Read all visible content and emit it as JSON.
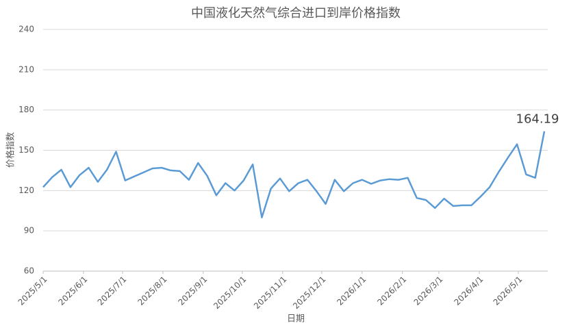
{
  "chart_data": {
    "type": "line",
    "title": "中国液化天然气综合进口到岸价格指数",
    "x_label": "日期",
    "y_label": "价格指数",
    "x": [
      "2025/5/1",
      "2025/5/8",
      "2025/5/15",
      "2025/5/22",
      "2025/5/29",
      "2025/6/5",
      "2025/6/12",
      "2025/6/19",
      "2025/6/26",
      "2025/7/3",
      "2025/7/10",
      "2025/7/17",
      "2025/7/24",
      "2025/7/31",
      "2025/8/7",
      "2025/8/14",
      "2025/8/21",
      "2025/8/28",
      "2025/9/4",
      "2025/9/11",
      "2025/9/18",
      "2025/9/25",
      "2025/10/2",
      "2025/10/9",
      "2025/10/16",
      "2025/10/23",
      "2025/10/30",
      "2025/11/6",
      "2025/11/13",
      "2025/11/20",
      "2025/11/27",
      "2025/12/4",
      "2025/12/11",
      "2025/12/18",
      "2025/12/25",
      "2026/1/1",
      "2026/1/8",
      "2026/1/15",
      "2026/1/22",
      "2026/1/29",
      "2026/2/5",
      "2026/2/12",
      "2026/2/19",
      "2026/2/26",
      "2026/3/5",
      "2026/3/12",
      "2026/3/19",
      "2026/3/26",
      "2026/4/2",
      "2026/4/9",
      "2026/4/16",
      "2026/4/23",
      "2026/4/30",
      "2026/5/7",
      "2026/5/14",
      "2026/5/21"
    ],
    "series": [
      {
        "name": "价格指数",
        "color": "#5b9bd5",
        "values": [
          122.5,
          130,
          135.5,
          122.5,
          131.5,
          137,
          126.5,
          135.5,
          149,
          127.5,
          130.5,
          133.5,
          136.5,
          137,
          135,
          134.5,
          128,
          140.5,
          131,
          116.5,
          125.5,
          120,
          127.5,
          139.5,
          100,
          121.5,
          129,
          119.5,
          125.5,
          128,
          119.5,
          110,
          128,
          119.5,
          125.5,
          128,
          125,
          127.5,
          128.5,
          128,
          129.5,
          114.5,
          113,
          107,
          114,
          108.5,
          109,
          109,
          115.5,
          122.5,
          134,
          144.5,
          154.5,
          132,
          129.5,
          164.19
        ]
      }
    ],
    "xlim": [
      "2025/5/1",
      "2026/5/21"
    ],
    "xticks": [
      "2025/5/1",
      "2025/6/1",
      "2025/7/1",
      "2025/8/1",
      "2025/9/1",
      "2025/10/1",
      "2025/11/1",
      "2025/12/1",
      "2026/1/1",
      "2026/2/1",
      "2026/3/1",
      "2026/4/1",
      "2026/5/1"
    ],
    "ylim": [
      60,
      240
    ],
    "yticks": [
      60,
      90,
      120,
      150,
      180,
      210,
      240
    ],
    "grid": true
  }
}
